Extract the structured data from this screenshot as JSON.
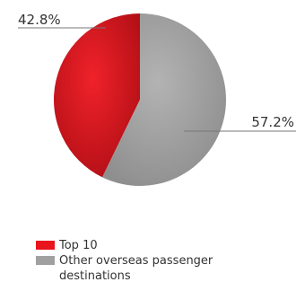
{
  "chart_data": {
    "type": "pie",
    "slices": [
      {
        "label": "Top 10",
        "value": 42.8,
        "value_label": "42.8%",
        "color": "#e8141e"
      },
      {
        "label": "Other overseas passenger destinations",
        "value": 57.2,
        "value_label": "57.2%",
        "color": "#a0a0a0"
      }
    ],
    "legend": {
      "placement": "bottom-left",
      "items": [
        "Top 10",
        "Other overseas passenger destinations"
      ]
    }
  }
}
